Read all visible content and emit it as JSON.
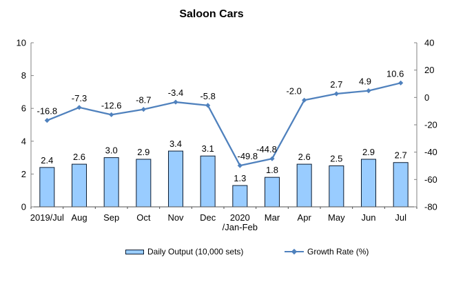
{
  "chart_data": {
    "type": "combo",
    "title": "Saloon Cars",
    "categories": [
      "2019/Jul",
      "Aug",
      "Sep",
      "Oct",
      "Nov",
      "Dec",
      "2020\n/Jan-Feb",
      "Mar",
      "Apr",
      "May",
      "Jun",
      "Jul"
    ],
    "series": [
      {
        "name": "Daily Output (10,000 sets)",
        "type": "bar",
        "axis": "left",
        "values": [
          2.4,
          2.6,
          3.0,
          2.9,
          3.4,
          3.1,
          1.3,
          1.8,
          2.6,
          2.5,
          2.9,
          2.7
        ],
        "fill": "#99CCFF",
        "border": "#0A1A2F"
      },
      {
        "name": "Growth Rate (%)",
        "type": "line",
        "axis": "right",
        "values": [
          -16.8,
          -7.3,
          -12.6,
          -8.7,
          -3.4,
          -5.8,
          -49.8,
          -44.8,
          -2.0,
          2.7,
          4.9,
          10.6
        ],
        "color": "#4F81BD",
        "marker": "diamond",
        "label_dx": [
          0,
          0,
          0,
          0,
          0,
          0,
          11,
          -8,
          -15,
          0,
          -5,
          -8
        ]
      }
    ],
    "left_axis": {
      "min": 0,
      "max": 10,
      "ticks": [
        0,
        2,
        4,
        6,
        8,
        10
      ]
    },
    "right_axis": {
      "min": -80,
      "max": 40,
      "ticks": [
        -80,
        -60,
        -40,
        -20,
        0,
        20,
        40
      ]
    },
    "grid": false,
    "legend_position": "bottom",
    "value_label_decimals": 1
  }
}
